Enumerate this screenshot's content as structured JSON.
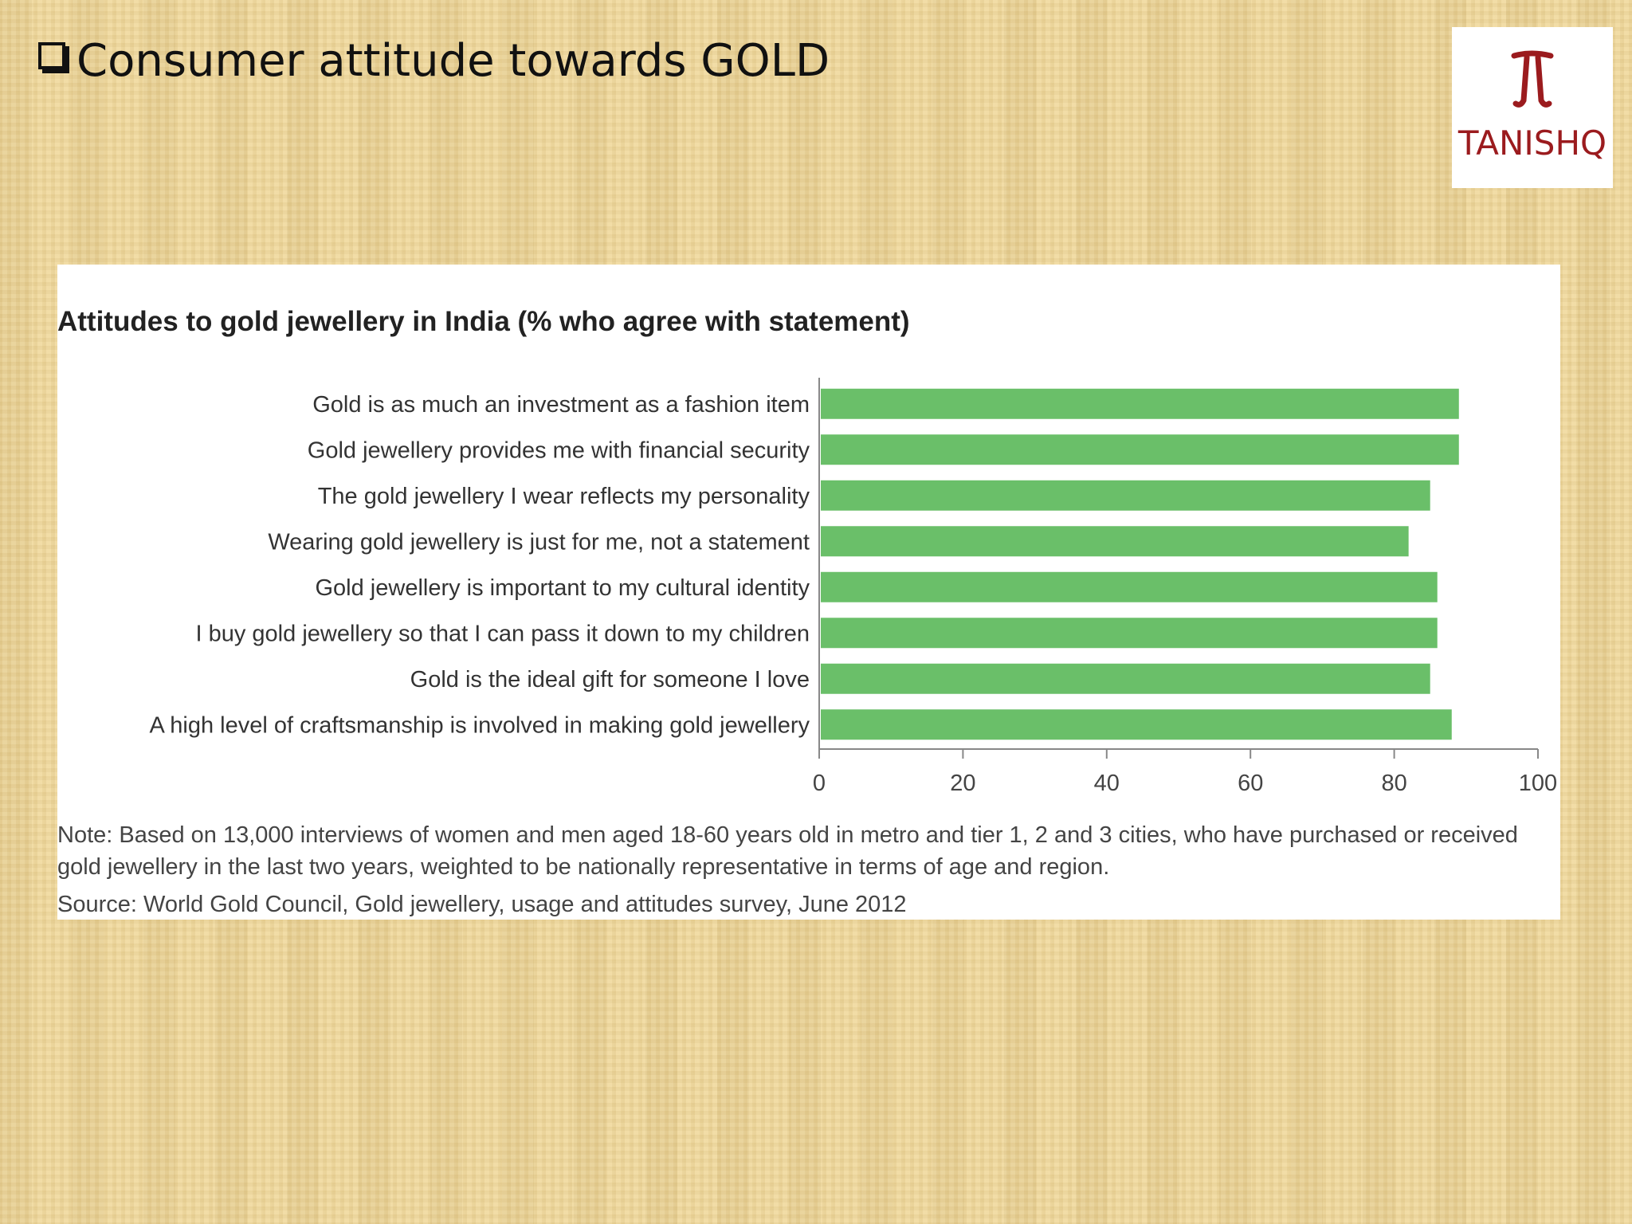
{
  "slide": {
    "title": "Consumer attitude towards GOLD"
  },
  "logo": {
    "text": "TANISHQ",
    "color": "#9b1b1e"
  },
  "chart_data": {
    "type": "bar",
    "orientation": "horizontal",
    "title": "Attitudes to gold jewellery in India (% who agree with statement)",
    "categories": [
      "Gold is as much an investment as a fashion item",
      "Gold jewellery provides me with financial security",
      "The gold jewellery I wear reflects my personality",
      "Wearing gold jewellery is just for me, not a statement",
      "Gold jewellery is important to my cultural identity",
      "I buy gold jewellery so that I can pass it down to my children",
      "Gold is the ideal gift for someone I love",
      "A high level of craftsmanship is involved in making gold jewellery"
    ],
    "values": [
      89,
      89,
      85,
      82,
      86,
      86,
      85,
      88
    ],
    "xlim": [
      0,
      100
    ],
    "xticks": [
      "0",
      "20",
      "40",
      "60",
      "80",
      "100"
    ],
    "bar_color": "#6abf69",
    "grid": false,
    "legend": "none"
  },
  "footnote": {
    "note": "Note: Based on 13,000 interviews of women and men aged 18-60 years old in metro and tier 1, 2 and 3 cities, who have purchased or received gold jewellery in the last two years, weighted to be nationally representative in terms of age and region.",
    "source": "Source: World Gold Council, Gold jewellery, usage and attitudes survey, June 2012"
  }
}
